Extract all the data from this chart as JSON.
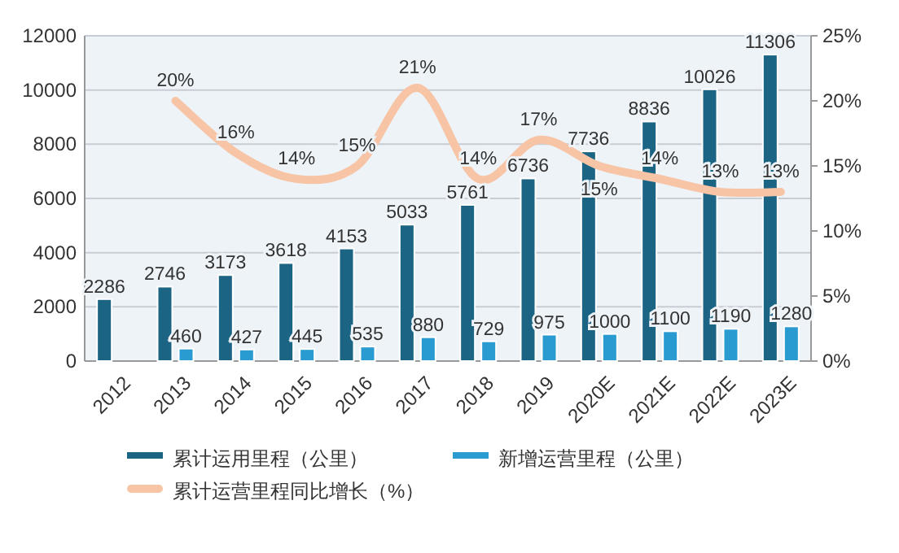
{
  "chart_data": {
    "type": "bar",
    "categories": [
      "2012",
      "2013",
      "2014",
      "2015",
      "2016",
      "2017",
      "2018",
      "2019",
      "2020E",
      "2021E",
      "2022E",
      "2023E"
    ],
    "series": [
      {
        "name": "累计运用里程（公里）",
        "color": "#1b6484",
        "values": [
          2286,
          2746,
          3173,
          3618,
          4153,
          5033,
          5761,
          6736,
          7736,
          8836,
          10026,
          11306
        ],
        "value_labels": [
          "2286",
          "2746",
          "3173",
          "3618",
          "4153",
          "5033",
          "5761",
          "6736",
          "7736",
          "8836",
          "10026",
          "11306"
        ]
      },
      {
        "name": "新增运营里程（公里）",
        "color": "#2a9bd0",
        "values": [
          null,
          460,
          427,
          445,
          535,
          880,
          729,
          975,
          1000,
          1100,
          1190,
          1280
        ],
        "value_labels": [
          null,
          "460",
          "427",
          "445",
          "535",
          "880",
          "729",
          "975",
          "1000",
          "1100",
          "1190",
          "1280"
        ]
      },
      {
        "name": "累计运营里程同比增长（%）",
        "type": "line",
        "axis": "y2",
        "color": "#f7c4a6",
        "values": [
          null,
          20,
          16,
          14,
          15,
          21,
          14,
          17,
          15,
          14,
          13,
          13
        ],
        "value_labels": [
          null,
          "20%",
          "16%",
          "14%",
          "15%",
          "21%",
          "14%",
          "17%",
          "15%",
          "14%",
          "13%",
          "13%"
        ]
      }
    ],
    "ylim": [
      0,
      12000
    ],
    "yticks": [
      0,
      2000,
      4000,
      6000,
      8000,
      10000,
      12000
    ],
    "y2lim": [
      0,
      25
    ],
    "y2ticks": [
      {
        "value": 0,
        "label": "0%"
      },
      {
        "value": 5,
        "label": "5%"
      },
      {
        "value": 10,
        "label": "10%"
      },
      {
        "value": 15,
        "label": "15%"
      },
      {
        "value": 20,
        "label": "20%"
      },
      {
        "value": 25,
        "label": "25%"
      }
    ],
    "grid": "y",
    "legend": "bottom"
  }
}
